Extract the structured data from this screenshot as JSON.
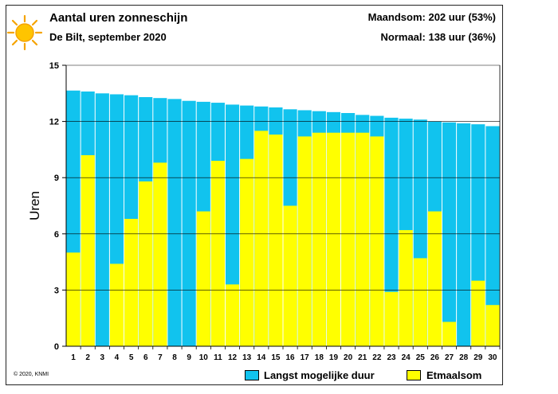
{
  "header": {
    "title": "Aantal uren zonneschijn",
    "subtitle": "De Bilt, september 2020",
    "month_sum": "Maandsom: 202 uur (53%)",
    "normal": "Normaal: 138 uur (36%)"
  },
  "footer": {
    "copyright": "© 2020, KNMI"
  },
  "legend": {
    "max": "Langst mogelijke duur",
    "actual": "Etmaalsom"
  },
  "colors": {
    "max": "#11c3ee",
    "actual": "#ffff00"
  },
  "icons": [
    "sun-icon"
  ],
  "chart_data": {
    "type": "bar",
    "ylabel": "Uren",
    "ylim": [
      0,
      15
    ],
    "yticks": [
      0,
      3,
      6,
      9,
      12,
      15
    ],
    "grid": true,
    "legend_position": "bottom",
    "categories": [
      "1",
      "2",
      "3",
      "4",
      "5",
      "6",
      "7",
      "8",
      "9",
      "10",
      "11",
      "12",
      "13",
      "14",
      "15",
      "16",
      "17",
      "18",
      "19",
      "20",
      "21",
      "22",
      "23",
      "24",
      "25",
      "26",
      "27",
      "28",
      "29",
      "30"
    ],
    "series": [
      {
        "name": "Langst mogelijke duur",
        "values": [
          13.65,
          13.6,
          13.5,
          13.45,
          13.4,
          13.3,
          13.25,
          13.2,
          13.1,
          13.05,
          13.0,
          12.9,
          12.85,
          12.8,
          12.75,
          12.65,
          12.6,
          12.55,
          12.5,
          12.45,
          12.35,
          12.3,
          12.2,
          12.15,
          12.1,
          12.0,
          11.95,
          11.9,
          11.85,
          11.75
        ]
      },
      {
        "name": "Etmaalsom",
        "values": [
          5.0,
          10.2,
          0,
          4.4,
          6.8,
          8.8,
          9.8,
          0,
          0,
          7.2,
          9.9,
          3.3,
          10.0,
          11.5,
          11.3,
          7.5,
          11.2,
          11.4,
          11.4,
          11.4,
          11.4,
          11.2,
          2.9,
          6.2,
          4.7,
          7.2,
          1.3,
          0,
          3.5,
          2.2
        ]
      }
    ]
  }
}
